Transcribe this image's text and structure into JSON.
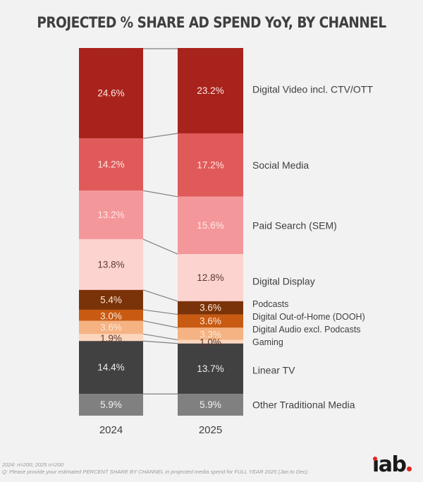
{
  "chart_data": {
    "type": "bar",
    "subtype": "stacked-100-percent",
    "title": "PROJECTED % SHARE AD SPEND YoY, BY CHANNEL",
    "xlabel": "",
    "ylabel": "",
    "ylim": [
      0,
      100
    ],
    "grid": false,
    "legend_position": "right",
    "categories": [
      "2024",
      "2025"
    ],
    "series": [
      {
        "name": "Digital Video incl. CTV/OTT",
        "values": [
          24.6,
          23.2
        ],
        "labels": [
          "24.6%",
          "23.2%"
        ],
        "color": "#a8231c",
        "text_color": "#fde8e4"
      },
      {
        "name": "Social Media",
        "values": [
          14.2,
          17.2
        ],
        "labels": [
          "14.2%",
          "17.2%"
        ],
        "color": "#e05a5a",
        "text_color": "#fde8e4"
      },
      {
        "name": "Paid Search (SEM)",
        "values": [
          13.2,
          15.6
        ],
        "labels": [
          "13.2%",
          "15.6%"
        ],
        "color": "#f4979a",
        "text_color": "#fde8e4"
      },
      {
        "name": "Digital Display",
        "values": [
          13.8,
          12.8
        ],
        "labels": [
          "13.8%",
          "12.8%"
        ],
        "color": "#fdd3cf",
        "text_color": "#5a3a36"
      },
      {
        "name": "Podcasts",
        "values": [
          5.4,
          3.6
        ],
        "labels": [
          "5.4%",
          "3.6%"
        ],
        "color": "#7a3208",
        "text_color": "#fde8d8"
      },
      {
        "name": "Digital Out-of-Home (DOOH)",
        "values": [
          3.0,
          3.6
        ],
        "labels": [
          "3.0%",
          "3.6%"
        ],
        "color": "#c85a12",
        "text_color": "#fde8d8"
      },
      {
        "name": "Digital Audio excl. Podcasts",
        "values": [
          3.6,
          3.3
        ],
        "labels": [
          "3.6%",
          "3.3%"
        ],
        "color": "#f5b282",
        "text_color": "#fde8d8"
      },
      {
        "name": "Gaming",
        "values": [
          1.9,
          1.0
        ],
        "labels": [
          "1.9%",
          "1.0%"
        ],
        "color": "#fcd5bd",
        "text_color": "#5a3a2e"
      },
      {
        "name": "Linear TV",
        "values": [
          14.4,
          13.7
        ],
        "labels": [
          "14.4%",
          "13.7%"
        ],
        "color": "#414141",
        "text_color": "#eeeeee"
      },
      {
        "name": "Other Traditional Media",
        "values": [
          5.9,
          5.9
        ],
        "labels": [
          "5.9%",
          "5.9%"
        ],
        "color": "#808080",
        "text_color": "#f2f2f2"
      }
    ]
  },
  "footnote": {
    "sample": "2024: n=200; 2025 n=200",
    "question": "Q: Please provide your estimated PERCENT SHARE BY CHANNEL in projected media spend for FULL YEAR 2025 (Jan to Dec)."
  },
  "logo": {
    "text": "iab",
    "accent_color": "#e02424"
  }
}
